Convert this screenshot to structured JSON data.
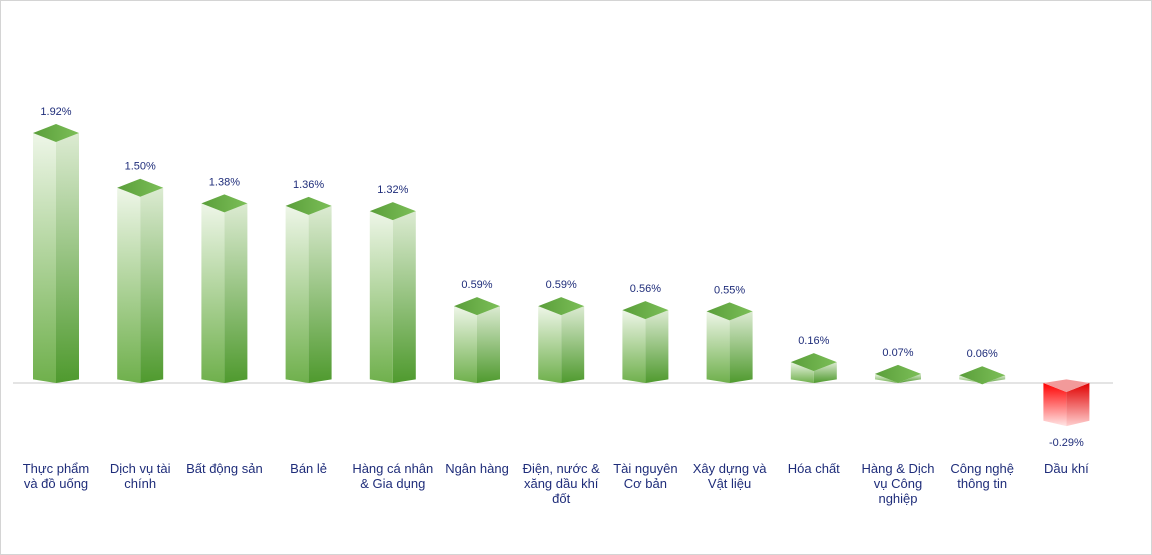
{
  "chart_data": {
    "type": "bar",
    "categories": [
      [
        "Thực phẩm",
        "và đồ uống"
      ],
      [
        "Dịch vụ tài",
        "chính"
      ],
      [
        "Bất động sản"
      ],
      [
        "Bán lẻ"
      ],
      [
        "Hàng cá nhân",
        "& Gia dụng"
      ],
      [
        "Ngân hàng"
      ],
      [
        "Điện, nước &",
        "xăng dầu khí",
        "đốt"
      ],
      [
        "Tài nguyên",
        "Cơ bản"
      ],
      [
        "Xây dựng và",
        "Vật liệu"
      ],
      [
        "Hóa chất"
      ],
      [
        "Hàng & Dịch",
        "vụ Công",
        "nghiệp"
      ],
      [
        "Công nghệ",
        "thông tin"
      ],
      [
        "Dầu khí"
      ]
    ],
    "values": [
      1.92,
      1.5,
      1.38,
      1.36,
      1.32,
      0.59,
      0.59,
      0.56,
      0.55,
      0.16,
      0.07,
      0.06,
      -0.29
    ],
    "data_labels": [
      "1.92%",
      "1.50%",
      "1.38%",
      "1.36%",
      "1.32%",
      "0.59%",
      "0.59%",
      "0.56%",
      "0.55%",
      "0.16%",
      "0.07%",
      "0.06%",
      "-0.29%"
    ],
    "ylim": [
      -0.29,
      1.92
    ],
    "grid": false,
    "legend": "none",
    "colors": {
      "positive_dark": "#6aa84f",
      "positive_light": "#e8f3e0",
      "negative_dark": "#e60000",
      "negative_light": "#fde8e8",
      "baseline": "#c8c8c8",
      "label_text": "#1f2d7a"
    }
  }
}
